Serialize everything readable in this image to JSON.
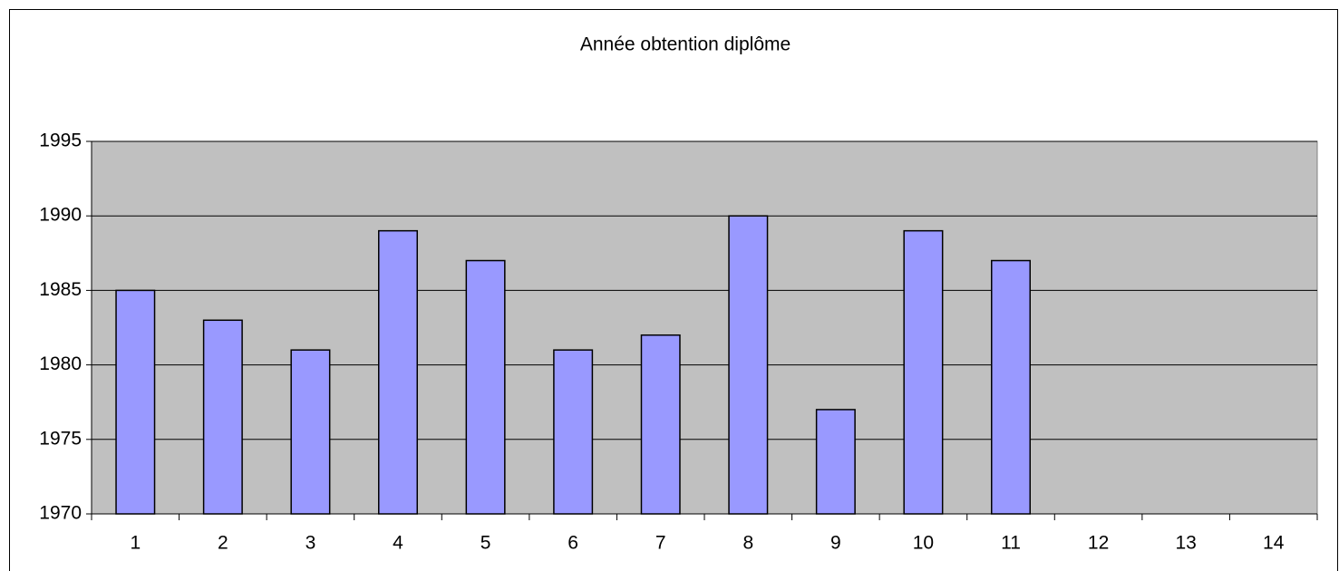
{
  "chart_data": {
    "type": "bar",
    "title": "Année obtention diplôme",
    "categories": [
      "1",
      "2",
      "3",
      "4",
      "5",
      "6",
      "7",
      "8",
      "9",
      "10",
      "11",
      "12",
      "13",
      "14"
    ],
    "values": [
      1985,
      1983,
      1981,
      1989,
      1987,
      1981,
      1982,
      1990,
      1977,
      1989,
      1987,
      null,
      null,
      null
    ],
    "color": "#9999ff",
    "ylim": [
      1970,
      1995
    ],
    "yticks": [
      1970,
      1975,
      1980,
      1985,
      1990,
      1995
    ],
    "grid": true
  }
}
